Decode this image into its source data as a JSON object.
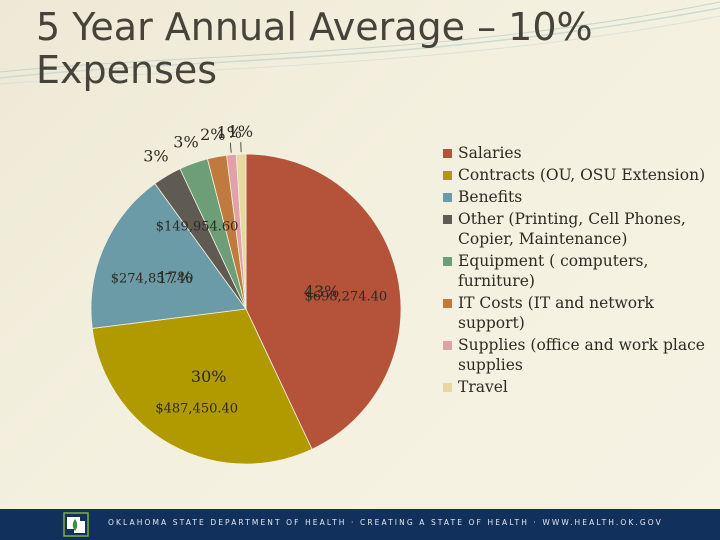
{
  "title_line1": "5 Year Annual Average – 10%",
  "title_line2": "Expenses",
  "chart_data": {
    "type": "pie",
    "title": "",
    "slices": [
      {
        "name": "Salaries",
        "percent": 43,
        "percent_label": "43%",
        "value": 698274.4,
        "value_label": "$698,274.40",
        "color": "#b4533a"
      },
      {
        "name": "Contracts (OU, OSU Extension)",
        "percent": 30,
        "percent_label": "30%",
        "value": 487450.4,
        "value_label": "$487,450.40",
        "color": "#b09a00"
      },
      {
        "name": "Benefits",
        "percent": 17,
        "percent_label": "17%",
        "value": 274857.4,
        "value_label": "$274,857.40",
        "color": "#6a9ba6"
      },
      {
        "name": "Other (Printing, Cell Phones, Copier, Maintenance)",
        "percent": 3,
        "percent_label": "3%",
        "value": 149954.6,
        "value_label": "$149,954.60",
        "color": "#5f5a52"
      },
      {
        "name": "Equipment ( computers, furniture)",
        "percent": 3,
        "percent_label": "3%",
        "color": "#6e9e78"
      },
      {
        "name": "IT Costs (IT and network support)",
        "percent": 2,
        "percent_label": "2%",
        "color": "#c17a3e"
      },
      {
        "name": "Supplies (office and work place supplies",
        "percent": 1,
        "percent_label": "1%",
        "color": "#e0a1a8"
      },
      {
        "name": "Travel",
        "percent": 1,
        "percent_label": "1%",
        "color": "#e6d9a0"
      }
    ],
    "legend_position": "right"
  },
  "footer": {
    "text": "Oklahoma State Department of Health · Creating a State of Health · www.health.ok.gov",
    "accent_color": "#12305c"
  }
}
